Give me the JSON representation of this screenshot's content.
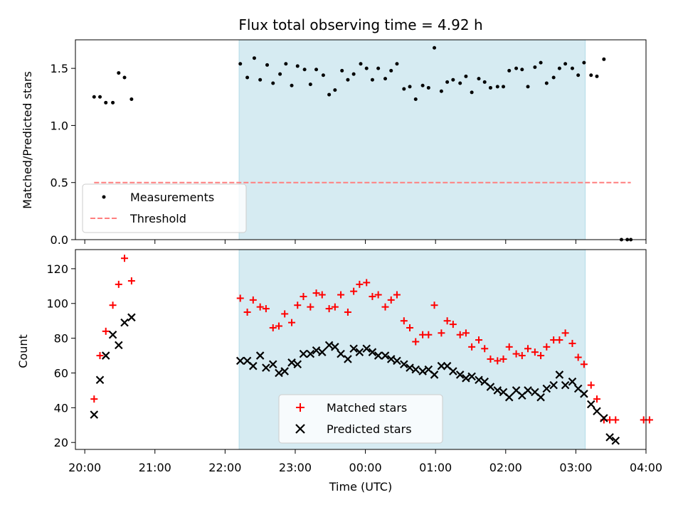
{
  "chart_data": [
    {
      "type": "scatter",
      "title": "Flux total observing time = 4.92 h",
      "xlabel": "",
      "ylabel": "Matched/Predicted stars",
      "xlim": [
        "19:52",
        "04:00"
      ],
      "ylim": [
        0,
        1.75
      ],
      "yticks": [
        "0.0",
        "0.5",
        "1.0",
        "1.5"
      ],
      "grid": false,
      "legend_location": "lower-left",
      "shaded_span": {
        "from": "22:12",
        "to": "03:08",
        "color": "#add8e6"
      },
      "series": [
        {
          "name": "Measurements",
          "marker": "dot",
          "color": "#000000",
          "points": [
            [
              "20:08",
              1.25
            ],
            [
              "20:13",
              1.25
            ],
            [
              "20:18",
              1.2
            ],
            [
              "20:24",
              1.2
            ],
            [
              "20:29",
              1.46
            ],
            [
              "20:34",
              1.42
            ],
            [
              "20:40",
              1.23
            ],
            [
              "22:13",
              1.54
            ],
            [
              "22:19",
              1.42
            ],
            [
              "22:25",
              1.59
            ],
            [
              "22:30",
              1.4
            ],
            [
              "22:36",
              1.53
            ],
            [
              "22:41",
              1.37
            ],
            [
              "22:47",
              1.45
            ],
            [
              "22:52",
              1.54
            ],
            [
              "22:57",
              1.35
            ],
            [
              "23:02",
              1.52
            ],
            [
              "23:08",
              1.49
            ],
            [
              "23:13",
              1.36
            ],
            [
              "23:18",
              1.49
            ],
            [
              "23:24",
              1.44
            ],
            [
              "23:29",
              1.27
            ],
            [
              "23:34",
              1.31
            ],
            [
              "23:40",
              1.48
            ],
            [
              "23:45",
              1.4
            ],
            [
              "23:50",
              1.45
            ],
            [
              "23:56",
              1.54
            ],
            [
              "00:01",
              1.5
            ],
            [
              "00:06",
              1.4
            ],
            [
              "00:11",
              1.5
            ],
            [
              "00:17",
              1.41
            ],
            [
              "00:22",
              1.48
            ],
            [
              "00:27",
              1.54
            ],
            [
              "00:33",
              1.32
            ],
            [
              "00:38",
              1.34
            ],
            [
              "00:43",
              1.23
            ],
            [
              "00:49",
              1.35
            ],
            [
              "00:54",
              1.33
            ],
            [
              "00:59",
              1.68
            ],
            [
              "01:05",
              1.3
            ],
            [
              "01:10",
              1.38
            ],
            [
              "01:15",
              1.4
            ],
            [
              "01:21",
              1.37
            ],
            [
              "01:26",
              1.43
            ],
            [
              "01:31",
              1.29
            ],
            [
              "01:37",
              1.41
            ],
            [
              "01:42",
              1.38
            ],
            [
              "01:47",
              1.33
            ],
            [
              "01:53",
              1.34
            ],
            [
              "01:58",
              1.34
            ],
            [
              "02:03",
              1.48
            ],
            [
              "02:09",
              1.5
            ],
            [
              "02:14",
              1.49
            ],
            [
              "02:19",
              1.34
            ],
            [
              "02:25",
              1.51
            ],
            [
              "02:30",
              1.55
            ],
            [
              "02:35",
              1.37
            ],
            [
              "02:41",
              1.42
            ],
            [
              "02:46",
              1.5
            ],
            [
              "02:51",
              1.54
            ],
            [
              "02:57",
              1.5
            ],
            [
              "03:02",
              1.44
            ],
            [
              "03:07",
              1.55
            ],
            [
              "03:13",
              1.44
            ],
            [
              "03:18",
              1.43
            ],
            [
              "03:24",
              1.58
            ],
            [
              "03:39",
              0.0
            ],
            [
              "03:44",
              0.0
            ],
            [
              "03:47",
              0.0
            ]
          ]
        },
        {
          "name": "Threshold",
          "style": "dashed",
          "color": "#ff7f7f",
          "points": [
            [
              "20:08",
              0.5
            ],
            [
              "03:47",
              0.5
            ]
          ]
        }
      ]
    },
    {
      "type": "scatter",
      "title": "",
      "xlabel": "Time (UTC)",
      "ylabel": "Count",
      "xlim": [
        "19:52",
        "04:00"
      ],
      "xticks": [
        "20:00",
        "21:00",
        "22:00",
        "23:00",
        "00:00",
        "01:00",
        "02:00",
        "03:00",
        "04:00"
      ],
      "ylim": [
        16,
        131
      ],
      "yticks": [
        "20",
        "40",
        "60",
        "80",
        "100",
        "120"
      ],
      "grid": false,
      "legend_location": "lower-center",
      "shaded_span": {
        "from": "22:12",
        "to": "03:08",
        "color": "#add8e6"
      },
      "series": [
        {
          "name": "Matched stars",
          "marker": "plus",
          "color": "#ff0000",
          "points": [
            [
              "20:08",
              45
            ],
            [
              "20:13",
              70
            ],
            [
              "20:18",
              84
            ],
            [
              "20:24",
              99
            ],
            [
              "20:29",
              111
            ],
            [
              "20:34",
              126
            ],
            [
              "20:40",
              113
            ],
            [
              "22:13",
              103
            ],
            [
              "22:19",
              95
            ],
            [
              "22:24",
              102
            ],
            [
              "22:30",
              98
            ],
            [
              "22:35",
              97
            ],
            [
              "22:41",
              86
            ],
            [
              "22:46",
              87
            ],
            [
              "22:51",
              94
            ],
            [
              "22:57",
              89
            ],
            [
              "23:02",
              99
            ],
            [
              "23:07",
              104
            ],
            [
              "23:13",
              98
            ],
            [
              "23:18",
              106
            ],
            [
              "23:23",
              105
            ],
            [
              "23:29",
              97
            ],
            [
              "23:34",
              98
            ],
            [
              "23:39",
              105
            ],
            [
              "23:45",
              95
            ],
            [
              "23:50",
              107
            ],
            [
              "23:55",
              111
            ],
            [
              "00:01",
              112
            ],
            [
              "00:06",
              104
            ],
            [
              "00:11",
              105
            ],
            [
              "00:17",
              98
            ],
            [
              "00:22",
              102
            ],
            [
              "00:27",
              105
            ],
            [
              "00:33",
              90
            ],
            [
              "00:38",
              86
            ],
            [
              "00:43",
              78
            ],
            [
              "00:49",
              82
            ],
            [
              "00:54",
              82
            ],
            [
              "00:59",
              99
            ],
            [
              "01:05",
              83
            ],
            [
              "01:10",
              90
            ],
            [
              "01:15",
              88
            ],
            [
              "01:21",
              82
            ],
            [
              "01:26",
              83
            ],
            [
              "01:31",
              75
            ],
            [
              "01:37",
              79
            ],
            [
              "01:42",
              74
            ],
            [
              "01:47",
              68
            ],
            [
              "01:53",
              67
            ],
            [
              "01:58",
              68
            ],
            [
              "02:03",
              75
            ],
            [
              "02:09",
              71
            ],
            [
              "02:14",
              70
            ],
            [
              "02:19",
              74
            ],
            [
              "02:25",
              72
            ],
            [
              "02:30",
              70
            ],
            [
              "02:35",
              75
            ],
            [
              "02:41",
              79
            ],
            [
              "02:46",
              79
            ],
            [
              "02:51",
              83
            ],
            [
              "02:57",
              77
            ],
            [
              "03:02",
              69
            ],
            [
              "03:07",
              65
            ],
            [
              "03:13",
              53
            ],
            [
              "03:18",
              45
            ],
            [
              "03:24",
              33
            ],
            [
              "03:29",
              33
            ],
            [
              "03:34",
              33
            ],
            [
              "03:58",
              33
            ],
            [
              "04:03",
              33
            ]
          ]
        },
        {
          "name": "Predicted stars",
          "marker": "x",
          "color": "#000000",
          "points": [
            [
              "20:08",
              36
            ],
            [
              "20:13",
              56
            ],
            [
              "20:18",
              70
            ],
            [
              "20:24",
              82
            ],
            [
              "20:29",
              76
            ],
            [
              "20:34",
              89
            ],
            [
              "20:40",
              92
            ],
            [
              "22:13",
              67
            ],
            [
              "22:19",
              67
            ],
            [
              "22:24",
              64
            ],
            [
              "22:30",
              70
            ],
            [
              "22:35",
              63
            ],
            [
              "22:41",
              65
            ],
            [
              "22:46",
              60
            ],
            [
              "22:51",
              61
            ],
            [
              "22:57",
              66
            ],
            [
              "23:02",
              65
            ],
            [
              "23:07",
              71
            ],
            [
              "23:13",
              71
            ],
            [
              "23:18",
              73
            ],
            [
              "23:23",
              72
            ],
            [
              "23:29",
              76
            ],
            [
              "23:34",
              75
            ],
            [
              "23:39",
              71
            ],
            [
              "23:45",
              68
            ],
            [
              "23:50",
              74
            ],
            [
              "23:55",
              72
            ],
            [
              "00:01",
              74
            ],
            [
              "00:06",
              72
            ],
            [
              "00:11",
              70
            ],
            [
              "00:17",
              70
            ],
            [
              "00:22",
              68
            ],
            [
              "00:27",
              67
            ],
            [
              "00:33",
              65
            ],
            [
              "00:38",
              63
            ],
            [
              "00:43",
              62
            ],
            [
              "00:49",
              61
            ],
            [
              "00:54",
              62
            ],
            [
              "00:59",
              59
            ],
            [
              "01:05",
              64
            ],
            [
              "01:10",
              64
            ],
            [
              "01:15",
              61
            ],
            [
              "01:21",
              59
            ],
            [
              "01:26",
              57
            ],
            [
              "01:31",
              58
            ],
            [
              "01:37",
              56
            ],
            [
              "01:42",
              55
            ],
            [
              "01:47",
              52
            ],
            [
              "01:53",
              50
            ],
            [
              "01:58",
              49
            ],
            [
              "02:03",
              46
            ],
            [
              "02:09",
              50
            ],
            [
              "02:14",
              47
            ],
            [
              "02:19",
              50
            ],
            [
              "02:25",
              49
            ],
            [
              "02:30",
              46
            ],
            [
              "02:35",
              51
            ],
            [
              "02:41",
              53
            ],
            [
              "02:46",
              59
            ],
            [
              "02:51",
              53
            ],
            [
              "02:57",
              55
            ],
            [
              "03:02",
              51
            ],
            [
              "03:07",
              48
            ],
            [
              "03:13",
              42
            ],
            [
              "03:18",
              38
            ],
            [
              "03:24",
              34
            ],
            [
              "03:29",
              23
            ],
            [
              "03:34",
              21
            ]
          ]
        }
      ]
    }
  ]
}
